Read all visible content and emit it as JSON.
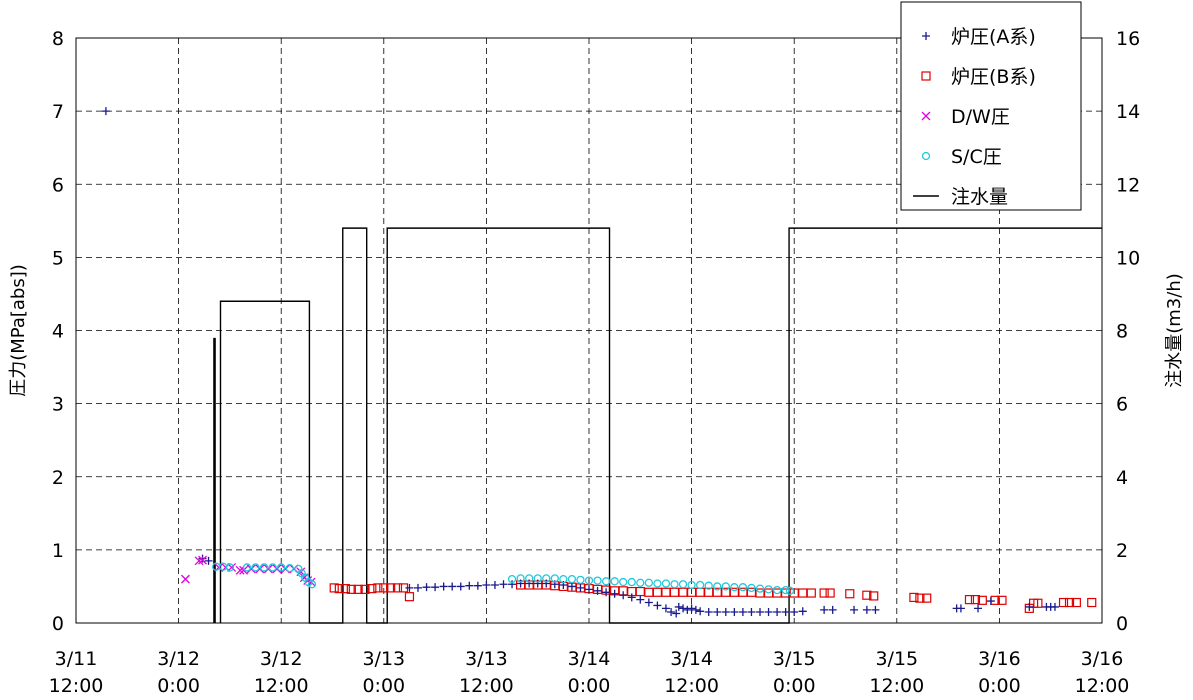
{
  "chart_data": {
    "type": "scatter",
    "x_ticks": [
      {
        "day": "3/11",
        "time": "12:00"
      },
      {
        "day": "3/12",
        "time": "0:00"
      },
      {
        "day": "3/12",
        "time": "12:00"
      },
      {
        "day": "3/13",
        "time": "0:00"
      },
      {
        "day": "3/13",
        "time": "12:00"
      },
      {
        "day": "3/14",
        "time": "0:00"
      },
      {
        "day": "3/14",
        "time": "12:00"
      },
      {
        "day": "3/15",
        "time": "0:00"
      },
      {
        "day": "3/15",
        "time": "12:00"
      },
      {
        "day": "3/16",
        "time": "0:00"
      },
      {
        "day": "3/16",
        "time": "12:00"
      }
    ],
    "xlim_hours": [
      0,
      120
    ],
    "x_unit_note": "hours after 3/11 12:00",
    "ylabel_left": "圧力(MPa[abs])",
    "ylabel_right": "注水量(m3/h)",
    "ylim_left": [
      0,
      8
    ],
    "ylim_right": [
      0,
      16
    ],
    "yticks_left": [
      "0",
      "1",
      "2",
      "3",
      "4",
      "5",
      "6",
      "7",
      "8"
    ],
    "yticks_right": [
      "0",
      "2",
      "4",
      "6",
      "8",
      "10",
      "12",
      "14",
      "16"
    ],
    "grid": true,
    "legend_position": "top-right",
    "legend": [
      {
        "key": "a",
        "label": "炉圧(A系)",
        "marker": "plus",
        "color": "#1a1a8c"
      },
      {
        "key": "b",
        "label": "炉圧(B系)",
        "marker": "square",
        "color": "#e00000"
      },
      {
        "key": "dw",
        "label": "D/W圧",
        "marker": "x",
        "color": "#e000e0"
      },
      {
        "key": "sc",
        "label": "S/C圧",
        "marker": "circle",
        "color": "#20c8dc"
      },
      {
        "key": "inj",
        "label": "注水量",
        "marker": "line",
        "color": "#000000"
      }
    ],
    "series": {
      "a": [
        [
          3.5,
          7.0
        ],
        [
          14.8,
          0.88
        ],
        [
          15.5,
          0.85
        ],
        [
          39,
          0.48
        ],
        [
          40,
          0.48
        ],
        [
          41,
          0.49
        ],
        [
          42,
          0.49
        ],
        [
          43,
          0.5
        ],
        [
          44,
          0.5
        ],
        [
          45,
          0.5
        ],
        [
          46,
          0.51
        ],
        [
          47,
          0.51
        ],
        [
          48,
          0.52
        ],
        [
          49,
          0.52
        ],
        [
          50,
          0.53
        ],
        [
          51,
          0.53
        ],
        [
          52,
          0.54
        ],
        [
          53,
          0.54
        ],
        [
          54,
          0.54
        ],
        [
          55,
          0.54
        ],
        [
          56,
          0.53
        ],
        [
          57,
          0.52
        ],
        [
          58,
          0.5
        ],
        [
          59,
          0.48
        ],
        [
          60,
          0.46
        ],
        [
          61,
          0.44
        ],
        [
          62,
          0.42
        ],
        [
          63,
          0.4
        ],
        [
          64,
          0.38
        ],
        [
          65,
          0.35
        ],
        [
          66,
          0.32
        ],
        [
          67,
          0.28
        ],
        [
          68,
          0.24
        ],
        [
          69,
          0.2
        ],
        [
          69.6,
          0.15
        ],
        [
          70.2,
          0.13
        ],
        [
          70.5,
          0.22
        ],
        [
          71,
          0.2
        ],
        [
          71.5,
          0.18
        ],
        [
          72,
          0.2
        ],
        [
          72.5,
          0.18
        ],
        [
          73,
          0.16
        ],
        [
          74,
          0.15
        ],
        [
          75,
          0.15
        ],
        [
          76,
          0.15
        ],
        [
          77,
          0.15
        ],
        [
          78,
          0.15
        ],
        [
          79,
          0.15
        ],
        [
          80,
          0.15
        ],
        [
          81,
          0.15
        ],
        [
          82,
          0.15
        ],
        [
          83,
          0.15
        ],
        [
          84,
          0.15
        ],
        [
          85,
          0.16
        ],
        [
          87.5,
          0.18
        ],
        [
          88.5,
          0.18
        ],
        [
          91,
          0.18
        ],
        [
          92.5,
          0.18
        ],
        [
          93.5,
          0.18
        ],
        [
          103,
          0.2
        ],
        [
          103.5,
          0.2
        ],
        [
          105.5,
          0.2
        ],
        [
          107,
          0.3
        ],
        [
          111.5,
          0.22
        ],
        [
          113.5,
          0.22
        ],
        [
          114,
          0.22
        ],
        [
          114.5,
          0.22
        ]
      ],
      "b": [
        [
          30.2,
          0.48
        ],
        [
          30.8,
          0.47
        ],
        [
          31.5,
          0.47
        ],
        [
          32.2,
          0.46
        ],
        [
          33,
          0.46
        ],
        [
          33.8,
          0.46
        ],
        [
          34.6,
          0.47
        ],
        [
          35.3,
          0.48
        ],
        [
          36,
          0.48
        ],
        [
          36.8,
          0.48
        ],
        [
          37.6,
          0.48
        ],
        [
          38.3,
          0.48
        ],
        [
          39,
          0.36
        ],
        [
          52,
          0.52
        ],
        [
          53,
          0.52
        ],
        [
          54,
          0.52
        ],
        [
          55,
          0.52
        ],
        [
          56,
          0.51
        ],
        [
          57,
          0.5
        ],
        [
          58,
          0.49
        ],
        [
          59,
          0.48
        ],
        [
          60,
          0.47
        ],
        [
          61,
          0.46
        ],
        [
          62,
          0.45
        ],
        [
          63,
          0.44
        ],
        [
          64,
          0.44
        ],
        [
          65,
          0.43
        ],
        [
          66,
          0.43
        ],
        [
          67,
          0.42
        ],
        [
          68,
          0.42
        ],
        [
          69,
          0.42
        ],
        [
          70,
          0.42
        ],
        [
          71,
          0.42
        ],
        [
          72,
          0.42
        ],
        [
          73,
          0.42
        ],
        [
          74,
          0.42
        ],
        [
          75,
          0.42
        ],
        [
          76,
          0.42
        ],
        [
          77,
          0.42
        ],
        [
          78,
          0.42
        ],
        [
          79,
          0.42
        ],
        [
          80,
          0.41
        ],
        [
          81,
          0.41
        ],
        [
          82,
          0.41
        ],
        [
          83,
          0.41
        ],
        [
          84,
          0.41
        ],
        [
          85,
          0.41
        ],
        [
          86,
          0.41
        ],
        [
          87.5,
          0.41
        ],
        [
          88.2,
          0.41
        ],
        [
          90.5,
          0.4
        ],
        [
          92.5,
          0.38
        ],
        [
          93.3,
          0.37
        ],
        [
          98,
          0.35
        ],
        [
          98.7,
          0.34
        ],
        [
          99.5,
          0.34
        ],
        [
          104.5,
          0.32
        ],
        [
          105.2,
          0.32
        ],
        [
          106,
          0.31
        ],
        [
          107.5,
          0.31
        ],
        [
          108.3,
          0.31
        ],
        [
          111.5,
          0.2
        ],
        [
          112,
          0.27
        ],
        [
          112.5,
          0.27
        ],
        [
          115.5,
          0.28
        ],
        [
          116.2,
          0.28
        ],
        [
          117,
          0.28
        ],
        [
          118.8,
          0.28
        ]
      ],
      "dw": [
        [
          12.8,
          0.6
        ],
        [
          14.4,
          0.85
        ],
        [
          14.8,
          0.86
        ],
        [
          16.7,
          0.76
        ],
        [
          17.5,
          0.76
        ],
        [
          18.2,
          0.76
        ],
        [
          19.2,
          0.72
        ],
        [
          19.6,
          0.72
        ],
        [
          20.5,
          0.74
        ],
        [
          21.5,
          0.74
        ],
        [
          22.5,
          0.74
        ],
        [
          23.5,
          0.74
        ],
        [
          24.5,
          0.74
        ],
        [
          25.5,
          0.74
        ],
        [
          26.3,
          0.7
        ],
        [
          26.7,
          0.62
        ],
        [
          27.1,
          0.58
        ],
        [
          27.5,
          0.56
        ]
      ],
      "sc": [
        [
          16.4,
          0.77
        ],
        [
          17.2,
          0.77
        ],
        [
          18,
          0.76
        ],
        [
          20,
          0.76
        ],
        [
          21,
          0.76
        ],
        [
          22,
          0.76
        ],
        [
          23,
          0.76
        ],
        [
          24,
          0.76
        ],
        [
          25,
          0.75
        ],
        [
          26,
          0.74
        ],
        [
          26.4,
          0.68
        ],
        [
          26.8,
          0.62
        ],
        [
          27.2,
          0.56
        ],
        [
          27.6,
          0.53
        ],
        [
          51,
          0.6
        ],
        [
          52,
          0.61
        ],
        [
          53,
          0.61
        ],
        [
          54,
          0.61
        ],
        [
          55,
          0.61
        ],
        [
          56,
          0.61
        ],
        [
          57,
          0.6
        ],
        [
          58,
          0.6
        ],
        [
          59,
          0.59
        ],
        [
          60,
          0.58
        ],
        [
          61,
          0.58
        ],
        [
          62,
          0.57
        ],
        [
          63,
          0.57
        ],
        [
          64,
          0.56
        ],
        [
          65,
          0.56
        ],
        [
          66,
          0.55
        ],
        [
          67,
          0.55
        ],
        [
          68,
          0.54
        ],
        [
          69,
          0.54
        ],
        [
          70,
          0.53
        ],
        [
          71,
          0.53
        ],
        [
          72,
          0.52
        ],
        [
          73,
          0.52
        ],
        [
          74,
          0.51
        ],
        [
          75,
          0.5
        ],
        [
          76,
          0.5
        ],
        [
          77,
          0.49
        ],
        [
          78,
          0.49
        ],
        [
          79,
          0.48
        ],
        [
          80,
          0.47
        ],
        [
          81,
          0.46
        ],
        [
          82,
          0.45
        ],
        [
          83,
          0.45
        ],
        [
          83.5,
          0.44
        ]
      ],
      "inj_thick": [
        [
          16.2,
          0
        ],
        [
          16.2,
          7.8
        ]
      ],
      "inj": [
        [
          16.9,
          0
        ],
        [
          16.9,
          8.8
        ],
        [
          27.3,
          8.8
        ],
        [
          27.3,
          0
        ],
        [
          31.2,
          0
        ],
        [
          31.2,
          10.8
        ],
        [
          34,
          10.8
        ],
        [
          34,
          0
        ],
        [
          36.4,
          0
        ],
        [
          36.4,
          10.8
        ],
        [
          62.4,
          10.8
        ],
        [
          62.4,
          0
        ],
        [
          83.4,
          0
        ],
        [
          83.4,
          10.8
        ],
        [
          121,
          10.8
        ]
      ]
    }
  }
}
